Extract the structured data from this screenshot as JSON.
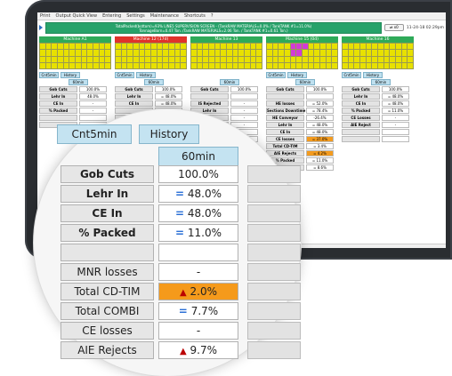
{
  "menu": [
    "Print",
    "Output Quick View",
    "Entering",
    "Settings",
    "Maintenance",
    "Shortcuts",
    "?"
  ],
  "ticker": {
    "line1": "TotalPacked(bottom)=93% LINE5 SUPERVISION SCREEN - (TankRAW MATERIALS=0.0% / TankTANK #1=11.0%)",
    "line2": "TonnageBorn=0.47 Ton. /TankRAW MATERIALS=2.06 Ton. / TankTANK #1=0.61 Ton.)"
  },
  "status_pill": "⇄ x0",
  "clock": "11-24-18 02:29pm",
  "machines": [
    {
      "name": "Machine A1",
      "color": "#2faa59"
    },
    {
      "name": "Machine 12 (17d)",
      "color": "#e0322a"
    },
    {
      "name": "Machine 13",
      "color": "#2faa59"
    },
    {
      "name": "Machine 15 (0d)",
      "color": "#2faa59"
    },
    {
      "name": "Machine 16",
      "color": "#2faa59"
    }
  ],
  "small_panels": [
    {
      "cnt": "Cnt5min",
      "hist": "History",
      "hdr": "60min",
      "rows": [
        [
          "Gob Cuts",
          "100.0%"
        ],
        [
          "Lehr In",
          "48.0%"
        ],
        [
          "CE In",
          "-"
        ],
        [
          "% Packed",
          "-"
        ],
        [
          "",
          ""
        ],
        [
          "",
          ""
        ]
      ]
    },
    {
      "cnt": "Cnt5min",
      "hist": "History",
      "hdr": "60min",
      "rows": [
        [
          "Gob Cuts",
          "100.0%"
        ],
        [
          "Lehr In",
          "= 48.0%"
        ],
        [
          "CE In",
          "= 48.0%"
        ],
        [
          "",
          ""
        ],
        [
          "",
          ""
        ]
      ]
    },
    {
      "cnt": "",
      "hist": "",
      "hdr": "60min",
      "rows": [
        [
          "Gob Cuts",
          "100.0%"
        ],
        [
          "",
          ""
        ],
        [
          "IS Rejected",
          "-"
        ],
        [
          "Lehr In",
          "-"
        ],
        [
          "CE In",
          "-"
        ],
        [
          "acked",
          "-"
        ],
        [
          "",
          ""
        ],
        [
          "",
          ""
        ]
      ]
    },
    {
      "cnt": "Cnt5min",
      "hist": "History",
      "hdr": "60min",
      "rows": [
        [
          "Gob Cuts",
          "100.0%"
        ],
        [
          "",
          ""
        ],
        [
          "HE losses",
          "= 52.0%"
        ],
        [
          "Sections Downtime",
          "= 78.4%"
        ],
        [
          "HE Conveyor",
          "-26.4%"
        ],
        [
          "Lehr In",
          "= 48.0%"
        ],
        [
          "CE In",
          "= 48.0%"
        ],
        [
          "CE losses",
          "= 37.0%"
        ],
        [
          "Total CD-TIM",
          "= 3.4%"
        ],
        [
          "AIE Rejects",
          "= 4.2%"
        ],
        [
          "% Packed",
          "= 11.0%"
        ],
        [
          "MNR losses",
          "= 8.6%"
        ]
      ]
    },
    {
      "cnt": "Cnt5min",
      "hist": "History",
      "hdr": "60min",
      "rows": [
        [
          "Gob Cuts",
          "100.0%"
        ],
        [
          "Lehr In",
          "= 48.0%"
        ],
        [
          "CE In",
          "= 48.0%"
        ],
        [
          "% Packed",
          "= 11.0%"
        ],
        [
          "CE Losses",
          "-"
        ],
        [
          "AIE Reject",
          "-"
        ],
        [
          "",
          ""
        ],
        [
          "",
          ""
        ]
      ]
    }
  ],
  "zoom": {
    "cnt_label": "Cnt5min",
    "history_label": "History",
    "period_label": "60min",
    "rows": [
      {
        "label": "Gob Cuts",
        "value": "100.0%",
        "bold": true,
        "marker": "",
        "highlight": false
      },
      {
        "label": "Lehr In",
        "value": "48.0%",
        "bold": true,
        "marker": "=",
        "highlight": false
      },
      {
        "label": "CE In",
        "value": "48.0%",
        "bold": true,
        "marker": "=",
        "highlight": false
      },
      {
        "label": "% Packed",
        "value": "11.0%",
        "bold": true,
        "marker": "=",
        "highlight": false
      },
      {
        "label": "",
        "value": "",
        "bold": false,
        "marker": "",
        "highlight": false
      },
      {
        "label": "MNR losses",
        "value": "-",
        "bold": false,
        "marker": "",
        "highlight": false
      },
      {
        "label": "Total CD-TIM",
        "value": "2.0%",
        "bold": false,
        "marker": "▲",
        "highlight": true
      },
      {
        "label": "Total COMBI",
        "value": "7.7%",
        "bold": false,
        "marker": "=",
        "highlight": false
      },
      {
        "label": "CE losses",
        "value": "-",
        "bold": false,
        "marker": "",
        "highlight": false
      },
      {
        "label": "AIE Rejects",
        "value": "9.7%",
        "bold": false,
        "marker": "▲",
        "highlight": false
      }
    ]
  }
}
